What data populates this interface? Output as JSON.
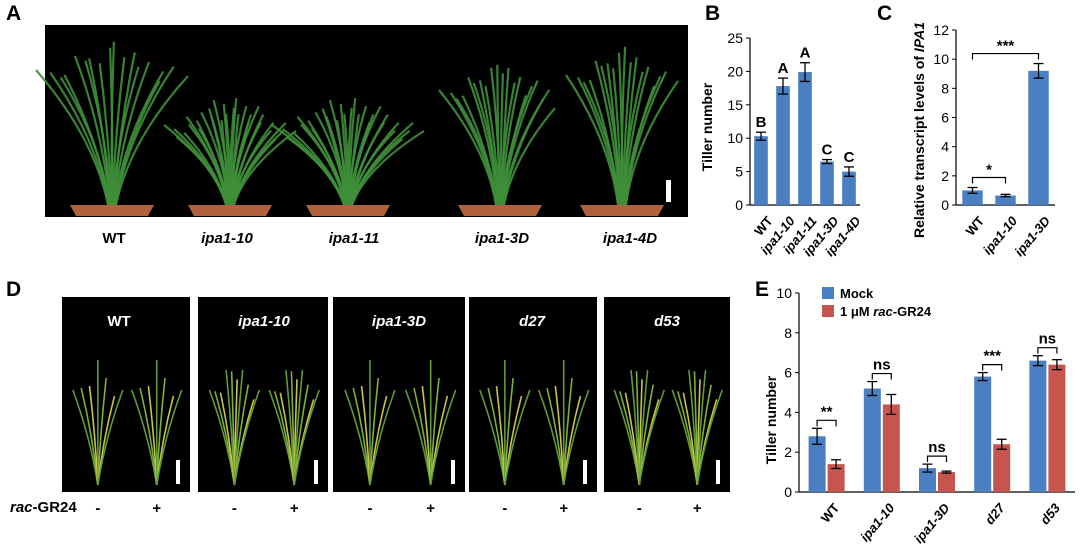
{
  "panels": {
    "A": {
      "letter": "A",
      "genotypes": [
        "WT",
        "ipa1-10",
        "ipa1-11",
        "ipa1-3D",
        "ipa1-4D"
      ]
    },
    "D": {
      "letter": "D",
      "genotypes": [
        "WT",
        "ipa1-10",
        "ipa1-3D",
        "d27",
        "d53"
      ],
      "treatment_label_italic": "rac",
      "treatment_label_rest": "-GR24",
      "treatment_signs": [
        "-",
        "+"
      ]
    }
  },
  "colors": {
    "blue": "#4a7fc1",
    "red": "#c65550",
    "photo_bg": "#000000",
    "leaf": "#3f8f3a",
    "pot": "#b0603a"
  },
  "chart_data": [
    {
      "panel": "B",
      "type": "bar",
      "categories": [
        "WT",
        "ipa1-10",
        "ipa1-11",
        "ipa1-3D",
        "ipa1-4D"
      ],
      "italic_categories": [
        false,
        true,
        true,
        true,
        true
      ],
      "values": [
        10.3,
        17.8,
        19.9,
        6.5,
        5.0
      ],
      "errors": [
        0.6,
        1.2,
        1.4,
        0.3,
        0.7
      ],
      "letters": [
        "B",
        "A",
        "A",
        "C",
        "C"
      ],
      "ylabel": "Tiller number",
      "ylim": [
        0,
        25
      ],
      "yticks": [
        0,
        5,
        10,
        15,
        20,
        25
      ]
    },
    {
      "panel": "C",
      "type": "bar",
      "categories": [
        "WT",
        "ipa1-10",
        "ipa1-3D"
      ],
      "italic_categories": [
        false,
        true,
        true
      ],
      "values": [
        1.0,
        0.65,
        9.2
      ],
      "errors": [
        0.2,
        0.08,
        0.5
      ],
      "ylabel_prefix": "Relative transcript levels of ",
      "ylabel_gene": "IPA1",
      "ylim": [
        0,
        12
      ],
      "yticks": [
        0,
        2,
        4,
        6,
        8,
        10,
        12
      ],
      "significance": [
        {
          "from": 0,
          "to": 1,
          "label": "*"
        },
        {
          "from": 0,
          "to": 2,
          "label": "***"
        }
      ]
    },
    {
      "panel": "E",
      "type": "bar",
      "categories": [
        "WT",
        "ipa1-10",
        "ipa1-3D",
        "d27",
        "d53"
      ],
      "series": [
        {
          "name": "Mock",
          "values": [
            2.8,
            5.2,
            1.2,
            5.8,
            6.6
          ],
          "errors": [
            0.4,
            0.35,
            0.2,
            0.2,
            0.25
          ]
        },
        {
          "name_prefix": "1 μM ",
          "name_italic": "rac",
          "name_suffix": "-GR24",
          "values": [
            1.4,
            4.4,
            1.0,
            2.4,
            6.4
          ],
          "errors": [
            0.22,
            0.5,
            0.05,
            0.25,
            0.25
          ]
        }
      ],
      "significance": [
        "**",
        "ns",
        "ns",
        "***",
        "ns"
      ],
      "ylabel": "Tiller number",
      "ylim": [
        0,
        10
      ],
      "yticks": [
        0,
        2,
        4,
        6,
        8,
        10
      ]
    }
  ]
}
